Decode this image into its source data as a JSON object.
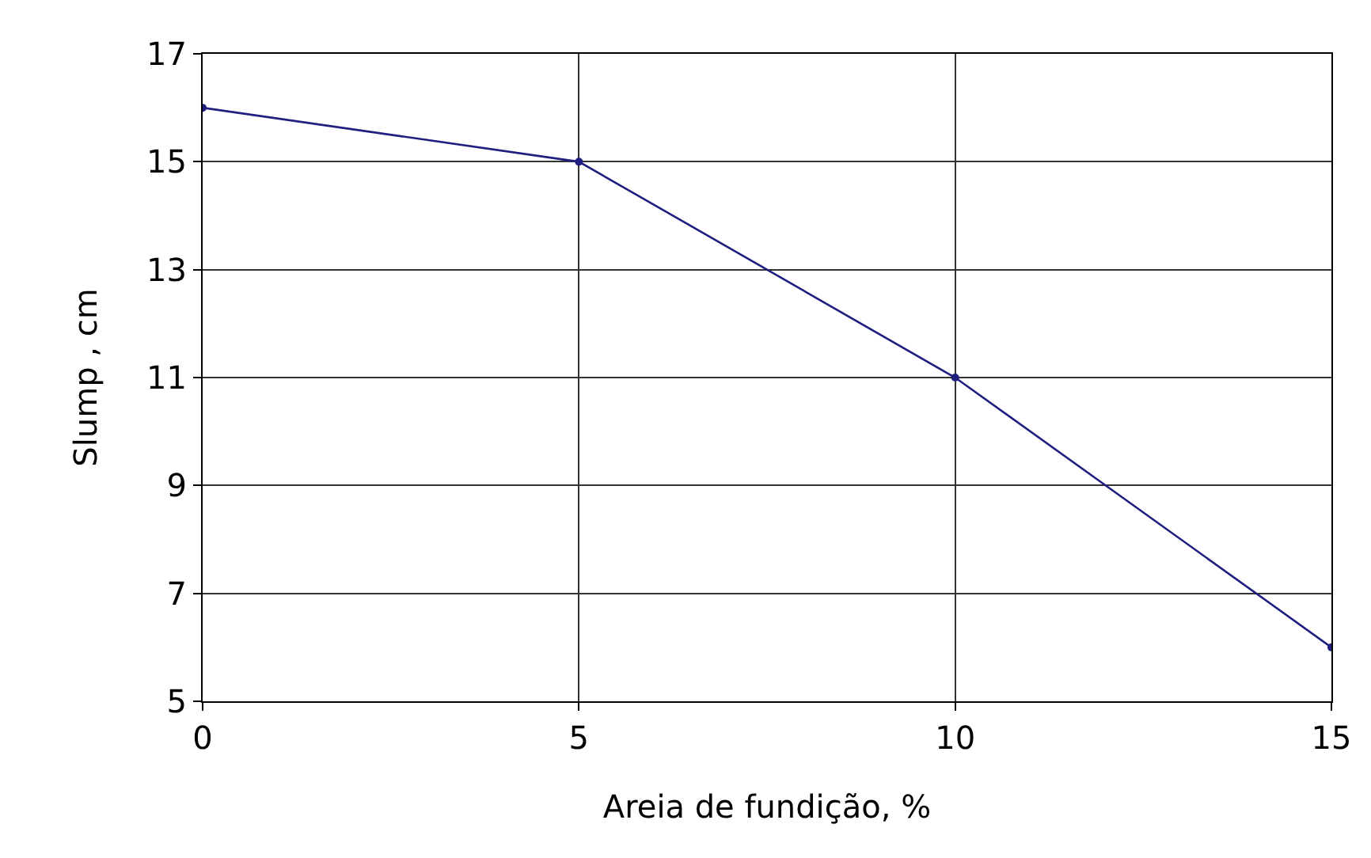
{
  "chart_data": {
    "type": "line",
    "xlabel": "Areia de fundição, %",
    "ylabel": "Slump , cm",
    "x": [
      0,
      5,
      10,
      15
    ],
    "series": [
      {
        "color": "#1f1f80",
        "values": [
          16,
          15,
          11,
          6
        ]
      }
    ],
    "xlim": [
      0,
      15
    ],
    "xticks": [
      0,
      5,
      10,
      15
    ],
    "ylim": [
      5,
      17
    ],
    "yticks": [
      5,
      7,
      9,
      11,
      13,
      15,
      17
    ],
    "grid": true,
    "marker": "circle",
    "line_style": "solid"
  }
}
